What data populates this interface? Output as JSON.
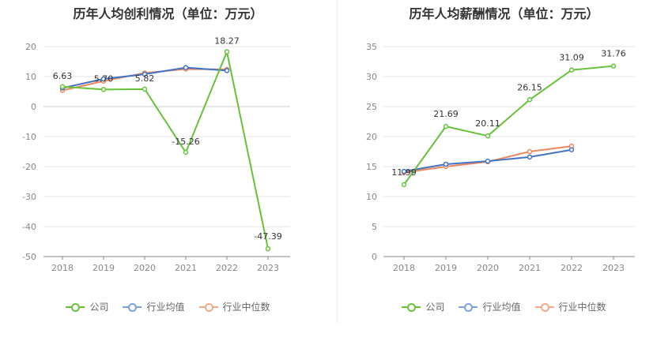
{
  "colors": {
    "company": "#67c23a",
    "industry_avg": "#4472c4",
    "industry_median": "#ed8661"
  },
  "legend": [
    {
      "key": "company",
      "label": "公司",
      "color": "#67c23a"
    },
    {
      "key": "industry_avg",
      "label": "行业均值",
      "color": "#7aa0e0"
    },
    {
      "key": "industry_median",
      "label": "行业中位数",
      "color": "#f2a98a"
    }
  ],
  "chart_data": [
    {
      "type": "line",
      "title": "历年人均创利情况（单位：万元）",
      "categories": [
        "2018",
        "2019",
        "2020",
        "2021",
        "2022",
        "2023"
      ],
      "ylim": [
        -50,
        20
      ],
      "yticks": [
        20,
        10,
        0,
        -10,
        -20,
        -30,
        -40,
        -50
      ],
      "grid": true,
      "legend_position": "bottom",
      "series": [
        {
          "key": "company",
          "name": "公司",
          "values": [
            6.63,
            5.7,
            5.82,
            -15.26,
            18.27,
            -47.39
          ],
          "labels": [
            "6.63",
            "5.70",
            "5.82",
            "-15.26",
            "18.27",
            "-47.39"
          ]
        },
        {
          "key": "industry_avg",
          "name": "行业均值",
          "values": [
            6.2,
            9.2,
            10.8,
            13.0,
            12.0,
            null
          ]
        },
        {
          "key": "industry_median",
          "name": "行业中位数",
          "values": [
            5.4,
            8.5,
            11.2,
            12.5,
            12.4,
            null
          ]
        }
      ]
    },
    {
      "type": "line",
      "title": "历年人均薪酬情况（单位：万元）",
      "categories": [
        "2018",
        "2019",
        "2020",
        "2021",
        "2022",
        "2023"
      ],
      "ylim": [
        0,
        35
      ],
      "yticks": [
        35,
        30,
        25,
        20,
        15,
        10,
        5,
        0
      ],
      "grid": true,
      "legend_position": "bottom",
      "series": [
        {
          "key": "company",
          "name": "公司",
          "values": [
            11.99,
            21.69,
            20.11,
            26.15,
            31.09,
            31.76
          ],
          "labels": [
            "11.99",
            "21.69",
            "20.11",
            "26.15",
            "31.09",
            "31.76"
          ]
        },
        {
          "key": "industry_avg",
          "name": "行业均值",
          "values": [
            14.2,
            15.4,
            15.9,
            16.6,
            17.8,
            null
          ]
        },
        {
          "key": "industry_median",
          "name": "行业中位数",
          "values": [
            14.0,
            15.0,
            15.8,
            17.5,
            18.4,
            null
          ]
        }
      ]
    }
  ]
}
